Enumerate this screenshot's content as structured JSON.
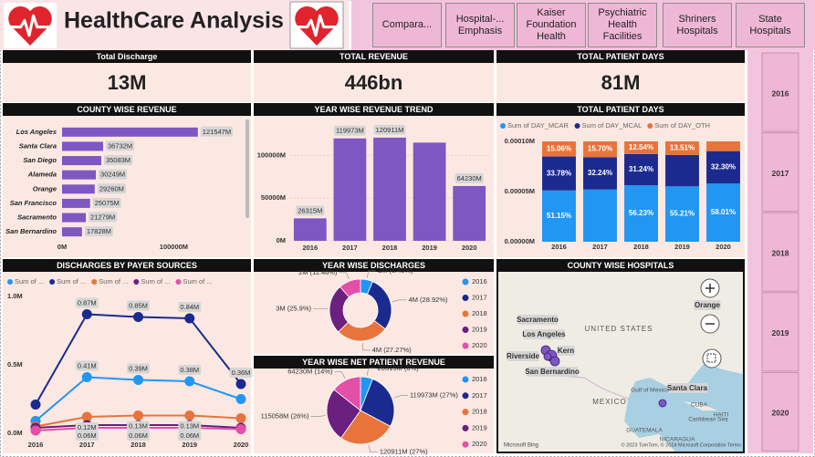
{
  "header": {
    "title": "HealthCare Analysis"
  },
  "nav": [
    "Compara...",
    "Hospital-... Emphasis",
    "Kaiser Foundation Health",
    "Psychiatric Health Facilities",
    "Shriners Hospitals",
    "State Hospitals"
  ],
  "cards": [
    {
      "title": "Total Discharge",
      "value": "13M"
    },
    {
      "title": "TOTAL REVENUE",
      "value": "446bn"
    },
    {
      "title": "TOTAL PATIENT DAYS",
      "value": "81M"
    }
  ],
  "slicer": [
    "2016",
    "2017",
    "2018",
    "2019",
    "2020"
  ],
  "chart_data": [
    {
      "type": "bar",
      "orientation": "horizontal",
      "title": "COUNTY WISE REVENUE",
      "categories": [
        "Los Angeles",
        "Santa Clara",
        "San Diego",
        "Alameda",
        "Orange",
        "San Francisco",
        "Sacramento",
        "San Bernardino"
      ],
      "values": [
        121547,
        36732,
        35083,
        30249,
        29260,
        25075,
        21279,
        17828
      ],
      "value_labels": [
        "121547M",
        "36732M",
        "35083M",
        "30249M",
        "29260M",
        "25075M",
        "21279M",
        "17828M"
      ],
      "color": "#7e57c2",
      "xlim": [
        0,
        165000
      ],
      "xticks": [
        {
          "value": 0,
          "label": "0M"
        },
        {
          "value": 100000,
          "label": "100000M"
        }
      ]
    },
    {
      "type": "bar",
      "title": "YEAR WISE REVENUE TREND",
      "categories": [
        "2016",
        "2017",
        "2018",
        "2019",
        "2020"
      ],
      "values": [
        26315,
        119973,
        120911,
        115058,
        64230
      ],
      "value_labels": [
        "26315M",
        "119973M",
        "120911M",
        null,
        "64230M"
      ],
      "color": "#7e57c2",
      "ylim": [
        0,
        140000
      ],
      "yticks": [
        {
          "value": 0,
          "label": "0M"
        },
        {
          "value": 50000,
          "label": "50000M"
        },
        {
          "value": 100000,
          "label": "100000M"
        }
      ],
      "grid": true
    },
    {
      "type": "stacked_bar",
      "title": "TOTAL PATIENT DAYS",
      "categories": [
        "2016",
        "2017",
        "2018",
        "2019",
        "2020"
      ],
      "series": [
        {
          "name": "Sum of DAY_MCAR",
          "color": "#2196f3",
          "values": [
            51.15,
            52.06,
            56.23,
            55.21,
            58.01
          ],
          "value_labels": [
            "51.15%",
            null,
            "56.23%",
            "55.21%",
            "58.01%"
          ]
        },
        {
          "name": "Sum of DAY_MCAL",
          "color": "#1b2a8f",
          "values": [
            33.78,
            32.24,
            31.24,
            31.28,
            32.3
          ],
          "value_labels": [
            "33.78%",
            "32.24%",
            "31.24%",
            null,
            "32.30%"
          ]
        },
        {
          "name": "Sum of DAY_OTH",
          "color": "#e8743b",
          "values": [
            15.06,
            15.7,
            12.54,
            13.51,
            9.69
          ],
          "value_labels": [
            "15.06%",
            "15.70%",
            "12.54%",
            "13.51%",
            null
          ]
        }
      ],
      "ylim": [
        0,
        100
      ],
      "yticks": [
        {
          "value": 0,
          "label": "0.00000M"
        },
        {
          "value": 50,
          "label": "0.00005M"
        },
        {
          "value": 100,
          "label": "0.00010M"
        }
      ]
    },
    {
      "type": "line",
      "title": "DISCHARGES BY PAYER SOURCES",
      "categories": [
        "2016",
        "2017",
        "2018",
        "2019",
        "2020"
      ],
      "series": [
        {
          "name": "Sum of ...",
          "color": "#2196f3",
          "values": [
            0.09,
            0.41,
            0.39,
            0.38,
            0.25
          ],
          "value_labels": [
            null,
            "0.41M",
            "0.39M",
            "0.38M",
            null
          ]
        },
        {
          "name": "Sum of ...",
          "color": "#1b2a8f",
          "values": [
            0.21,
            0.87,
            0.85,
            0.84,
            0.36
          ],
          "value_labels": [
            null,
            "0.87M",
            "0.85M",
            "0.84M",
            "0.36M"
          ]
        },
        {
          "name": "Sum of ...",
          "color": "#e8743b",
          "values": [
            0.05,
            0.12,
            0.13,
            0.13,
            0.11
          ],
          "value_labels": [
            null,
            "0.12M",
            "0.13M",
            "0.13M",
            null
          ]
        },
        {
          "name": "Sum of ...",
          "color": "#6b1f7f",
          "values": [
            0.04,
            0.06,
            0.06,
            0.06,
            0.04
          ],
          "value_labels": [
            null,
            "0.06M",
            "0.06M",
            "0.06M",
            null
          ]
        },
        {
          "name": "Sum of ...",
          "color": "#e44fa8",
          "values": [
            0.02,
            0.04,
            0.04,
            0.04,
            0.03
          ],
          "value_labels": [
            null,
            null,
            null,
            null,
            null
          ]
        }
      ],
      "ylim": [
        -0.04,
        1.0
      ],
      "yticks": [
        {
          "value": 0,
          "label": "0.0M"
        },
        {
          "value": 0.5,
          "label": "0.5M"
        },
        {
          "value": 1.0,
          "label": "1.0M"
        }
      ]
    },
    {
      "type": "donut",
      "title": "YEAR WISE DISCHARGES",
      "categories": [
        "2016",
        "2017",
        "2018",
        "2019",
        "2020"
      ],
      "values": [
        6.45,
        28.92,
        27.27,
        25.9,
        11.46
      ],
      "value_labels": [
        "1M (6.45%)",
        "4M (28.92%)",
        "4M (27.27%)",
        "3M (25.9%)",
        "2M (11.46%)"
      ],
      "colors": [
        "#2196f3",
        "#1b2a8f",
        "#e8743b",
        "#6b1f7f",
        "#e44fa8"
      ]
    },
    {
      "type": "pie",
      "title": "YEAR WISE NET PATIENT REVENUE",
      "categories": [
        "2016",
        "2017",
        "2018",
        "2019",
        "2020"
      ],
      "values": [
        26315,
        119973,
        120911,
        115058,
        64230
      ],
      "value_labels": [
        "26315M (6%)",
        "119973M (27%)",
        "120911M (27%)",
        "115058M (26%)",
        "64230M (14%)"
      ],
      "colors": [
        "#2196f3",
        "#1b2a8f",
        "#e8743b",
        "#6b1f7f",
        "#e44fa8"
      ]
    }
  ],
  "map": {
    "title": "COUNTY WISE HOSPITALS",
    "labels": [
      "Sacramento",
      "Los Angeles",
      "Kern",
      "Riverside",
      "San Bernardino",
      "Orange",
      "Santa Clara"
    ],
    "places": [
      "UNITED STATES",
      "MEXICO",
      "Gulf of Mexico",
      "CUBA",
      "GUATEMALA",
      "NICARAGUA",
      "HAITI",
      "Caribbean Sea"
    ],
    "attribution": "Microsoft Bing",
    "copyright": "© 2023 TomTom, © 2024 Microsoft Corporation   Terms"
  }
}
